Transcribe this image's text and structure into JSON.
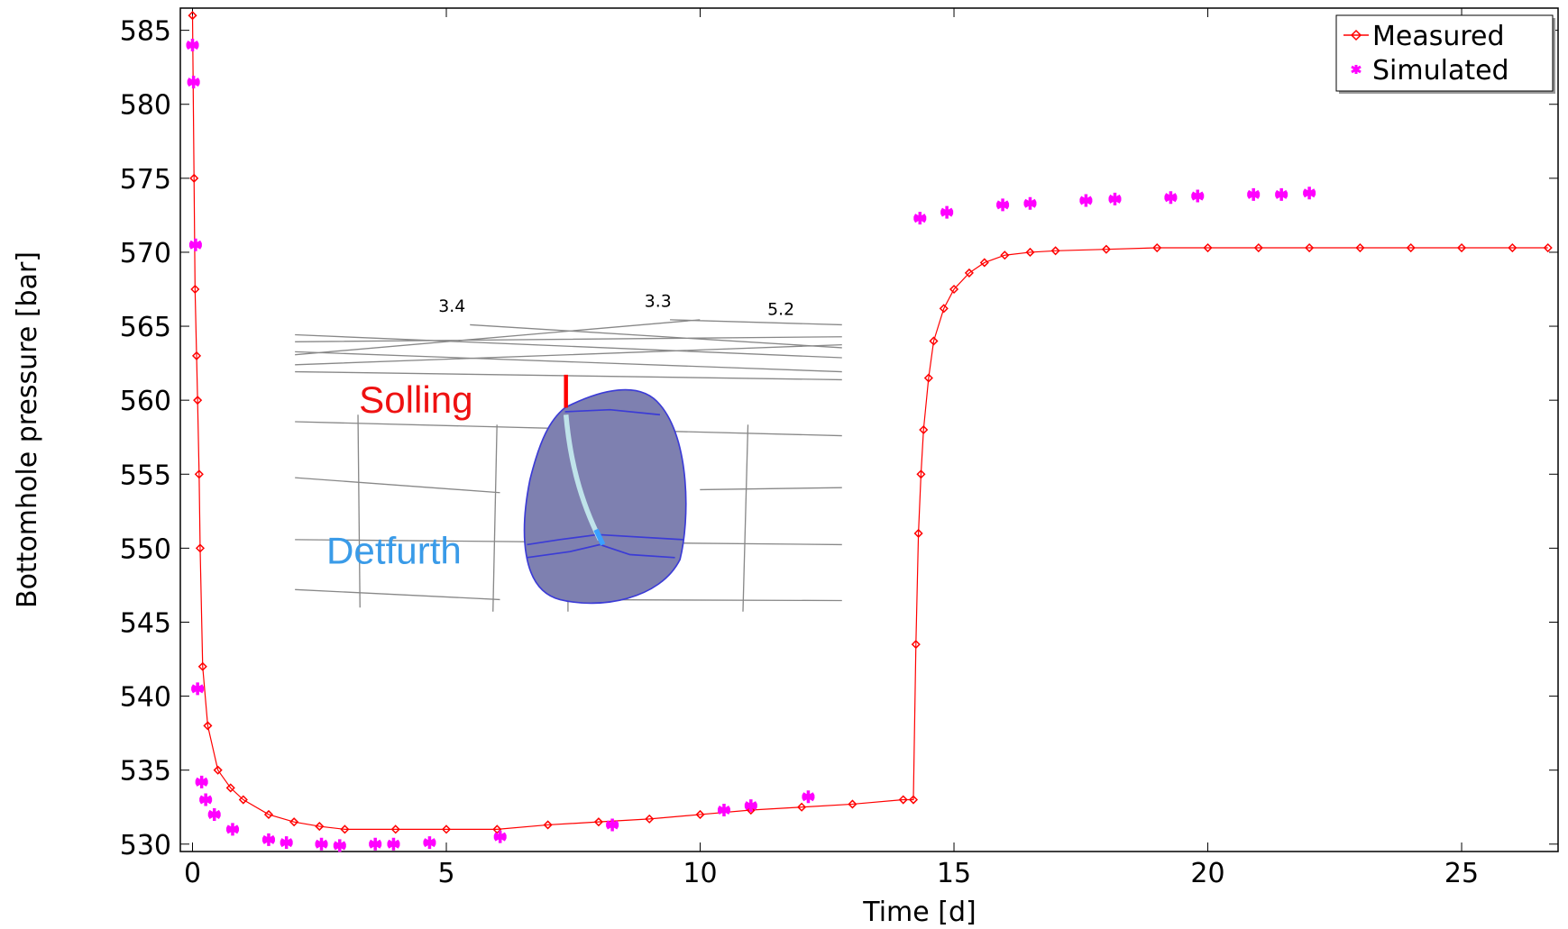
{
  "chart_data": {
    "type": "line",
    "xlabel": "Time [d]",
    "ylabel": "Bottomhole pressure [bar]",
    "xlim": [
      -0.24,
      26.9
    ],
    "ylim": [
      529.5,
      586.5
    ],
    "xticks": [
      0,
      5,
      10,
      15,
      20,
      25
    ],
    "yticks": [
      530,
      535,
      540,
      545,
      550,
      555,
      560,
      565,
      570,
      575,
      580,
      585
    ],
    "legend": "top-right",
    "series": [
      {
        "name": "Measured",
        "color": "#ff0000",
        "marker": "diamond",
        "x": [
          0,
          0.03,
          0.05,
          0.08,
          0.1,
          0.13,
          0.15,
          0.2,
          0.3,
          0.5,
          0.75,
          1,
          1.5,
          2,
          2.5,
          3,
          4,
          5,
          6,
          7,
          8,
          9,
          10,
          11,
          12,
          13,
          14,
          14.2,
          14.25,
          14.3,
          14.35,
          14.4,
          14.5,
          14.6,
          14.8,
          15,
          15.3,
          15.6,
          16,
          16.5,
          17,
          18,
          19,
          20,
          21,
          22,
          23,
          24,
          25,
          26,
          26.7
        ],
        "values": [
          586,
          575,
          567.5,
          563,
          560,
          555,
          550,
          542,
          538,
          535,
          533.8,
          533,
          532,
          531.5,
          531.2,
          531,
          531,
          531,
          531,
          531.3,
          531.5,
          531.7,
          532,
          532.3,
          532.5,
          532.7,
          533,
          533,
          543.5,
          551,
          555,
          558,
          561.5,
          564,
          566.2,
          567.5,
          568.6,
          569.3,
          569.8,
          570,
          570.1,
          570.2,
          570.3,
          570.3,
          570.3,
          570.3,
          570.3,
          570.3,
          570.3,
          570.3,
          570.3
        ]
      },
      {
        "name": "Simulated",
        "color": "#ff00ff",
        "marker": "asterisk",
        "x": [
          0,
          0.02,
          0.06,
          0.1,
          0.18,
          0.26,
          0.43,
          0.79,
          1.5,
          1.85,
          2.54,
          2.9,
          3.6,
          3.96,
          4.67,
          6.06,
          8.27,
          10.47,
          11.0,
          12.13,
          14.33,
          14.86,
          15.96,
          16.5,
          17.6,
          18.17,
          19.27,
          19.8,
          20.9,
          21.45,
          22.0
        ],
        "values": [
          584,
          581.5,
          570.5,
          540.5,
          534.2,
          533,
          532,
          531,
          530.3,
          530.1,
          530,
          529.9,
          530,
          530,
          530.1,
          530.5,
          531.3,
          532.3,
          532.6,
          533.2,
          572.3,
          572.7,
          573.2,
          573.3,
          573.5,
          573.6,
          573.7,
          573.8,
          573.9,
          573.9,
          574
        ]
      }
    ],
    "annotations": [
      "3.4",
      "3.3",
      "5.2",
      "Solling",
      "Detfurth"
    ]
  }
}
